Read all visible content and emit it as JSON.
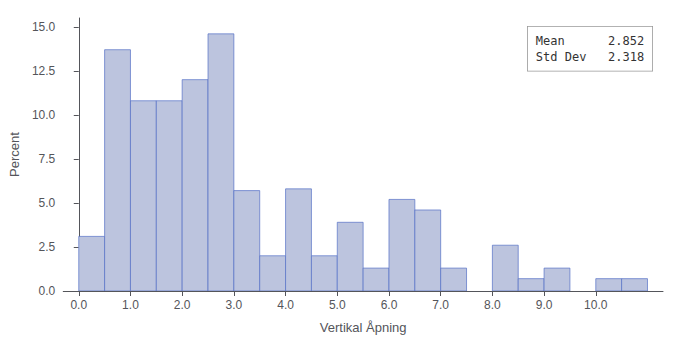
{
  "chart_data": {
    "type": "histogram",
    "x": [
      0.0,
      0.5,
      1.0,
      1.5,
      2.0,
      2.5,
      3.0,
      3.5,
      4.0,
      4.5,
      5.0,
      5.5,
      6.0,
      6.5,
      7.0,
      8.0,
      8.5,
      9.0,
      10.0,
      10.5
    ],
    "values": [
      3.1,
      13.7,
      10.8,
      10.8,
      12.0,
      14.6,
      5.7,
      2.0,
      5.8,
      2.0,
      3.9,
      1.3,
      5.2,
      4.6,
      1.3,
      2.6,
      0.7,
      1.3,
      0.7,
      0.7
    ],
    "bin_width": 0.5,
    "color": "#bcc4de",
    "xlabel": "Vertikal Åpning",
    "ylabel": "Percent",
    "xlim": [
      -0.3,
      11.3
    ],
    "ylim": [
      0,
      15.5
    ],
    "xticks": [
      {
        "value": 0,
        "label": "0.0"
      },
      {
        "value": 1,
        "label": "1.0"
      },
      {
        "value": 2,
        "label": "2.0"
      },
      {
        "value": 3,
        "label": "3.0"
      },
      {
        "value": 4,
        "label": "4.0"
      },
      {
        "value": 5,
        "label": "5.0"
      },
      {
        "value": 6,
        "label": "6.0"
      },
      {
        "value": 7,
        "label": "7.0"
      },
      {
        "value": 8,
        "label": "8.0"
      },
      {
        "value": 9,
        "label": "9.0"
      },
      {
        "value": 10,
        "label": "10.0"
      }
    ],
    "yticks": [
      {
        "value": 0,
        "label": "0.0"
      },
      2.5,
      {
        "value": 5,
        "label": "5.0"
      },
      7.5,
      {
        "value": 10,
        "label": "10.0"
      },
      12.5,
      {
        "value": 15,
        "label": "15.0"
      }
    ],
    "annotation": "Mean      2.852\nStd Dev   2.318",
    "grid": false
  }
}
